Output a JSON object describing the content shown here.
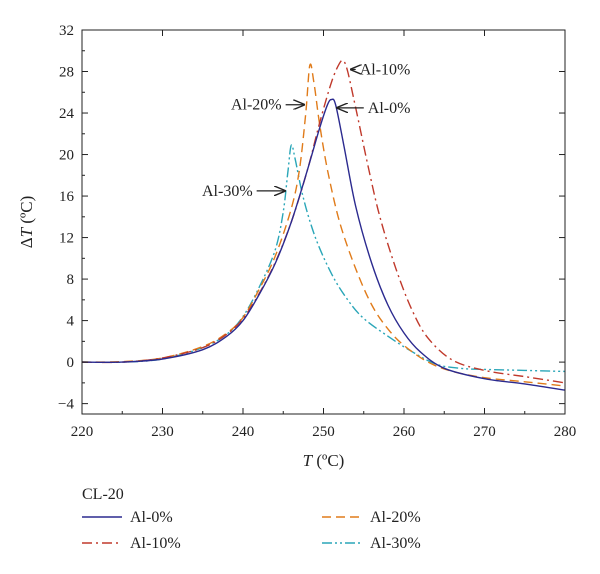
{
  "chart_data": {
    "type": "line",
    "xlabel": {
      "symbol": "T",
      "unit": " (ºC)"
    },
    "ylabel": {
      "prefix": "Δ",
      "symbol": "T",
      "unit": " (ºC)"
    },
    "xlim": [
      220,
      280
    ],
    "ylim": [
      -5,
      32
    ],
    "x_ticks": [
      220,
      230,
      240,
      250,
      260,
      270,
      280
    ],
    "y_ticks": [
      -4,
      0,
      4,
      8,
      12,
      16,
      20,
      24,
      28,
      32
    ],
    "grid": false,
    "legend": {
      "title": "CL-20",
      "placement": "bottom"
    },
    "series": [
      {
        "name": "Al-0%",
        "color": "#2b2a8f",
        "dash": "solid",
        "points": [
          [
            220,
            0
          ],
          [
            225,
            0
          ],
          [
            230,
            0.3
          ],
          [
            235,
            1.2
          ],
          [
            238,
            2.5
          ],
          [
            240,
            4
          ],
          [
            242,
            6.5
          ],
          [
            244,
            9.5
          ],
          [
            246,
            13.5
          ],
          [
            248,
            18.5
          ],
          [
            249.5,
            22.5
          ],
          [
            250.5,
            24.8
          ],
          [
            251,
            25.3
          ],
          [
            251.5,
            24.8
          ],
          [
            252.5,
            21
          ],
          [
            254,
            15
          ],
          [
            256,
            9.5
          ],
          [
            258,
            5.5
          ],
          [
            260,
            2.8
          ],
          [
            262,
            1
          ],
          [
            265,
            -0.6
          ],
          [
            270,
            -1.6
          ],
          [
            275,
            -2.1
          ],
          [
            280,
            -2.7
          ]
        ]
      },
      {
        "name": "Al-10%",
        "color": "#c0392b",
        "dash": "dashdot",
        "points": [
          [
            220,
            0
          ],
          [
            225,
            0
          ],
          [
            230,
            0.4
          ],
          [
            235,
            1.4
          ],
          [
            238,
            2.7
          ],
          [
            240,
            4.2
          ],
          [
            242,
            6.6
          ],
          [
            244,
            9.6
          ],
          [
            246,
            13.5
          ],
          [
            248,
            18.5
          ],
          [
            249.5,
            23
          ],
          [
            251,
            27
          ],
          [
            252,
            28.8
          ],
          [
            252.5,
            29
          ],
          [
            253,
            28
          ],
          [
            254,
            24.5
          ],
          [
            255.5,
            19
          ],
          [
            257,
            14
          ],
          [
            259,
            9
          ],
          [
            261,
            5
          ],
          [
            263,
            2.3
          ],
          [
            266,
            0.2
          ],
          [
            270,
            -0.8
          ],
          [
            275,
            -1.4
          ],
          [
            280,
            -2
          ]
        ]
      },
      {
        "name": "Al-20%",
        "color": "#e07b1a",
        "dash": "dashed",
        "points": [
          [
            220,
            0
          ],
          [
            225,
            0.05
          ],
          [
            230,
            0.4
          ],
          [
            235,
            1.5
          ],
          [
            238,
            2.8
          ],
          [
            240,
            4.3
          ],
          [
            242,
            7
          ],
          [
            244,
            10.2
          ],
          [
            246,
            14.8
          ],
          [
            247,
            18.5
          ],
          [
            247.8,
            24
          ],
          [
            248.3,
            28.6
          ],
          [
            248.8,
            27
          ],
          [
            249.5,
            23
          ],
          [
            250.5,
            18.5
          ],
          [
            252,
            13.5
          ],
          [
            254,
            9
          ],
          [
            256,
            5.5
          ],
          [
            258,
            3.2
          ],
          [
            260,
            1.6
          ],
          [
            263,
            0
          ],
          [
            266,
            -0.9
          ],
          [
            270,
            -1.5
          ],
          [
            275,
            -1.9
          ],
          [
            280,
            -2.3
          ]
        ]
      },
      {
        "name": "Al-30%",
        "color": "#2aa6b8",
        "dash": "dashdotdot",
        "points": [
          [
            220,
            0
          ],
          [
            225,
            0
          ],
          [
            230,
            0.3
          ],
          [
            235,
            1.4
          ],
          [
            238,
            2.7
          ],
          [
            240,
            4.4
          ],
          [
            242,
            7.2
          ],
          [
            244,
            10.8
          ],
          [
            245,
            14.5
          ],
          [
            245.6,
            18.5
          ],
          [
            246,
            20.9
          ],
          [
            246.5,
            19.5
          ],
          [
            247.5,
            15.8
          ],
          [
            249,
            12
          ],
          [
            251,
            8.5
          ],
          [
            253,
            6
          ],
          [
            255,
            4.2
          ],
          [
            258,
            2.5
          ],
          [
            261,
            1
          ],
          [
            264,
            -0.2
          ],
          [
            267,
            -0.6
          ],
          [
            270,
            -0.7
          ],
          [
            275,
            -0.8
          ],
          [
            280,
            -0.9
          ]
        ]
      }
    ],
    "annotations": [
      {
        "text": "Al-10%",
        "text_x": 254.5,
        "text_y": 28.2,
        "arrow_to": [
          253.4,
          28.2
        ]
      },
      {
        "text": "Al-20%",
        "text_x": 244.8,
        "text_y": 24.8,
        "arrow_to": [
          247.6,
          24.8
        ]
      },
      {
        "text": "Al-0%",
        "text_x": 255.5,
        "text_y": 24.5,
        "arrow_to": [
          251.7,
          24.5
        ]
      },
      {
        "text": "Al-30%",
        "text_x": 241.2,
        "text_y": 16.5,
        "arrow_to": [
          245.2,
          16.5
        ]
      }
    ]
  }
}
